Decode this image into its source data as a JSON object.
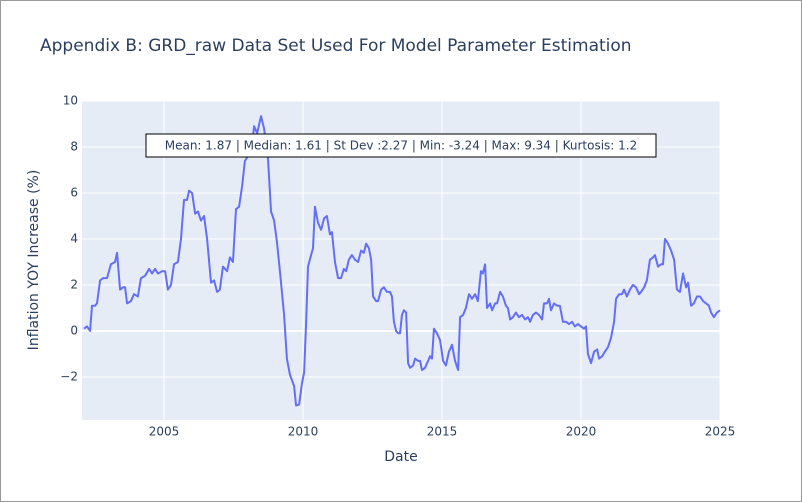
{
  "chart_data": {
    "type": "line",
    "title": "Appendix B: GRD_raw Data Set Used For Model Parameter Estimation",
    "xlabel": "Date",
    "ylabel": "Inflation YOY Increase (%)",
    "annotation": "Mean: 1.87 | Median: 1.61 | St Dev :2.27 | Min: -3.24 | Max: 9.34 | Kurtosis: 1.2",
    "xlim": [
      2002.05,
      2025
    ],
    "xticks": [
      2005,
      2010,
      2015,
      2020,
      2025
    ],
    "ylim": [
      -3.87,
      10
    ],
    "yticks": [
      {
        "value": -2,
        "label": "−2"
      },
      0,
      2,
      4,
      6,
      8,
      10
    ],
    "grid": true,
    "x": [
      2002.12,
      2002.23,
      2002.34,
      2002.41,
      2002.52,
      2002.59,
      2002.7,
      2002.81,
      2002.95,
      2003.09,
      2003.24,
      2003.31,
      2003.42,
      2003.53,
      2003.6,
      2003.67,
      2003.81,
      2003.92,
      2004.06,
      2004.17,
      2004.32,
      2004.46,
      2004.57,
      2004.68,
      2004.78,
      2004.93,
      2005.04,
      2005.14,
      2005.25,
      2005.36,
      2005.5,
      2005.61,
      2005.72,
      2005.83,
      2005.9,
      2006.01,
      2006.12,
      2006.22,
      2006.33,
      2006.44,
      2006.55,
      2006.69,
      2006.8,
      2006.91,
      2007.01,
      2007.12,
      2007.27,
      2007.37,
      2007.48,
      2007.59,
      2007.7,
      2007.81,
      2007.91,
      2008.02,
      2008.13,
      2008.24,
      2008.35,
      2008.49,
      2008.6,
      2008.74,
      2008.85,
      2008.96,
      2009.06,
      2009.17,
      2009.32,
      2009.42,
      2009.53,
      2009.68,
      2009.75,
      2009.86,
      2009.96,
      2010.04,
      2010.11,
      2010.18,
      2010.29,
      2010.36,
      2010.43,
      2010.54,
      2010.65,
      2010.76,
      2010.86,
      2010.97,
      2011.04,
      2011.15,
      2011.26,
      2011.37,
      2011.47,
      2011.55,
      2011.65,
      2011.76,
      2011.87,
      2011.98,
      2012.09,
      2012.19,
      2012.27,
      2012.37,
      2012.45,
      2012.52,
      2012.63,
      2012.7,
      2012.81,
      2012.91,
      2013.02,
      2013.13,
      2013.2,
      2013.27,
      2013.35,
      2013.42,
      2013.49,
      2013.56,
      2013.63,
      2013.71,
      2013.78,
      2013.85,
      2013.96,
      2014.03,
      2014.14,
      2014.21,
      2014.28,
      2014.39,
      2014.5,
      2014.57,
      2014.64,
      2014.71,
      2014.82,
      2014.93,
      2015.04,
      2015.14,
      2015.25,
      2015.36,
      2015.47,
      2015.58,
      2015.65,
      2015.76,
      2015.86,
      2015.97,
      2016.08,
      2016.19,
      2016.29,
      2016.4,
      2016.47,
      2016.55,
      2016.62,
      2016.73,
      2016.8,
      2016.91,
      2016.98,
      2017.09,
      2017.19,
      2017.3,
      2017.37,
      2017.45,
      2017.55,
      2017.66,
      2017.77,
      2017.88,
      2017.99,
      2018.09,
      2018.17,
      2018.27,
      2018.38,
      2018.49,
      2018.6,
      2018.67,
      2018.78,
      2018.85,
      2018.92,
      2019.03,
      2019.14,
      2019.24,
      2019.35,
      2019.46,
      2019.57,
      2019.68,
      2019.78,
      2019.89,
      2020.0,
      2020.11,
      2020.18,
      2020.25,
      2020.36,
      2020.47,
      2020.58,
      2020.65,
      2020.76,
      2020.86,
      2020.97,
      2021.08,
      2021.19,
      2021.26,
      2021.37,
      2021.47,
      2021.55,
      2021.65,
      2021.76,
      2021.87,
      2021.98,
      2022.09,
      2022.16,
      2022.27,
      2022.37,
      2022.48,
      2022.59,
      2022.66,
      2022.77,
      2022.88,
      2022.95,
      2023.02,
      2023.13,
      2023.24,
      2023.35,
      2023.45,
      2023.56,
      2023.67,
      2023.78,
      2023.85,
      2023.96,
      2024.06,
      2024.17,
      2024.28,
      2024.39,
      2024.5,
      2024.6,
      2024.68,
      2024.78,
      2024.89,
      2025.0
    ],
    "series": [
      {
        "name": "GRD_raw",
        "color": "#636efa",
        "values": [
          0.1,
          0.2,
          0.0,
          1.1,
          1.1,
          1.2,
          2.2,
          2.3,
          2.3,
          2.9,
          3.0,
          3.4,
          1.8,
          1.9,
          1.9,
          1.2,
          1.3,
          1.6,
          1.5,
          2.3,
          2.4,
          2.7,
          2.5,
          2.7,
          2.5,
          2.6,
          2.6,
          1.8,
          2.0,
          2.9,
          3.0,
          4.0,
          5.7,
          5.7,
          6.1,
          6.0,
          5.1,
          5.2,
          4.8,
          5.0,
          4.0,
          2.1,
          2.2,
          1.7,
          1.8,
          2.8,
          2.6,
          3.2,
          3.0,
          5.3,
          5.4,
          6.3,
          7.4,
          7.6,
          7.7,
          8.9,
          8.6,
          9.34,
          8.8,
          7.5,
          5.2,
          4.8,
          3.9,
          2.6,
          0.7,
          -1.2,
          -1.9,
          -2.4,
          -3.24,
          -3.2,
          -2.3,
          -1.8,
          0.3,
          2.8,
          3.3,
          3.6,
          5.4,
          4.7,
          4.4,
          4.9,
          5.0,
          4.2,
          4.3,
          3.0,
          2.3,
          2.3,
          2.7,
          2.6,
          3.1,
          3.3,
          3.1,
          3.0,
          3.5,
          3.4,
          3.8,
          3.6,
          3.1,
          1.5,
          1.3,
          1.3,
          1.8,
          1.9,
          1.7,
          1.7,
          1.5,
          0.4,
          0.0,
          -0.1,
          -0.1,
          0.7,
          0.9,
          0.8,
          -1.4,
          -1.6,
          -1.5,
          -1.2,
          -1.3,
          -1.3,
          -1.7,
          -1.6,
          -1.3,
          -1.1,
          -1.2,
          0.1,
          -0.1,
          -0.4,
          -1.3,
          -1.5,
          -0.9,
          -0.6,
          -1.3,
          -1.7,
          0.6,
          0.7,
          1.0,
          1.6,
          1.4,
          1.6,
          1.3,
          2.6,
          2.5,
          2.9,
          1.0,
          1.2,
          0.9,
          1.2,
          1.2,
          1.7,
          1.5,
          1.1,
          1.0,
          0.5,
          0.6,
          0.8,
          0.6,
          0.7,
          0.5,
          0.6,
          0.4,
          0.7,
          0.8,
          0.7,
          0.5,
          1.2,
          1.2,
          1.4,
          0.9,
          1.2,
          1.1,
          1.1,
          0.4,
          0.4,
          0.3,
          0.4,
          0.2,
          0.3,
          0.2,
          0.1,
          0.2,
          -1.0,
          -1.4,
          -0.9,
          -0.8,
          -1.2,
          -1.1,
          -0.9,
          -0.7,
          -0.3,
          0.4,
          1.4,
          1.6,
          1.6,
          1.8,
          1.5,
          1.8,
          2.0,
          1.9,
          1.6,
          1.7,
          1.9,
          2.2,
          3.1,
          3.2,
          3.3,
          2.8,
          2.9,
          2.9,
          4.0,
          3.8,
          3.5,
          3.1,
          1.8,
          1.7,
          2.5,
          1.9,
          2.1,
          1.1,
          1.2,
          1.5,
          1.5,
          1.3,
          1.2,
          1.1,
          0.8,
          0.6,
          0.8,
          0.9
        ]
      }
    ]
  }
}
